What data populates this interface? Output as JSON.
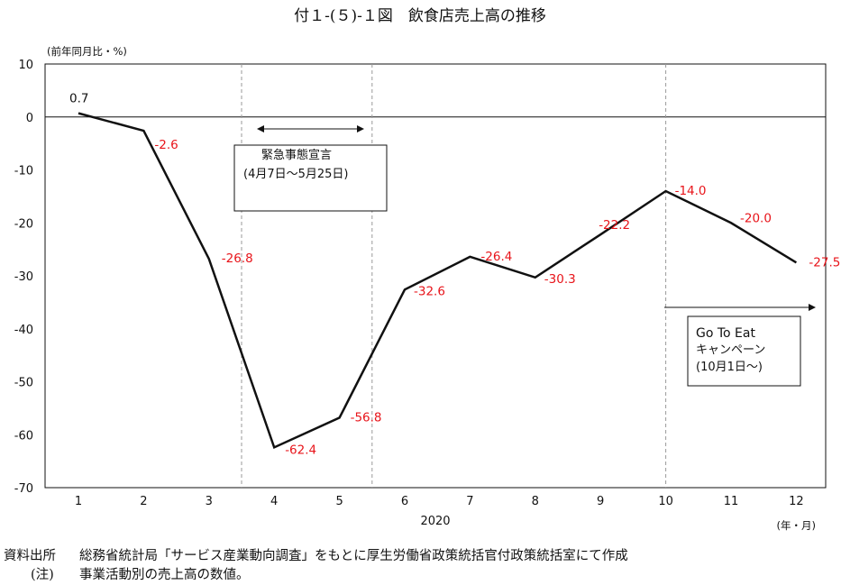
{
  "chart_data": {
    "type": "line",
    "title": "付１-(５)-１図　飲食店売上高の推移",
    "ylabel": "(前年同月比・%)",
    "xlabel": "(年・月)",
    "year_label": "2020",
    "categories": [
      "1",
      "2",
      "3",
      "4",
      "5",
      "6",
      "7",
      "8",
      "9",
      "10",
      "11",
      "12"
    ],
    "values": [
      0.7,
      -2.6,
      -26.8,
      -62.4,
      -56.8,
      -32.6,
      -26.4,
      -30.3,
      -22.2,
      -14.0,
      -20.0,
      -27.5
    ],
    "data_labels": [
      "0.7",
      "-2.6",
      "-26.8",
      "-62.4",
      "-56.8",
      "-32.6",
      "-26.4",
      "-30.3",
      "-22.2",
      "-14.0",
      "-20.0",
      "-27.5"
    ],
    "ylim": [
      -70,
      10
    ],
    "yticks": [
      "10",
      "0",
      "-10",
      "-20",
      "-30",
      "-40",
      "-50",
      "-60",
      "-70"
    ],
    "grid": false,
    "label_colors": {
      "first": "#111111",
      "others": "#e8141a"
    },
    "line_color": "#111111",
    "dashed_verticals_at_x": [
      3.5,
      5.5,
      10
    ],
    "annotations": {
      "emergency": {
        "line1": "緊急事態宣言",
        "line2": "(4月7日～5月25日)"
      },
      "gotoeat": {
        "line1": "Go To Eat",
        "line2": "キャンペーン",
        "line3": "(10月1日～)"
      }
    }
  },
  "footer": {
    "source_label": "資料出所",
    "source_text": "総務省統計局「サービス産業動向調査」をもとに厚生労働省政策統括官付政策統括室にて作成",
    "note_label": "(注)",
    "note_text": "事業活動別の売上高の数値。"
  }
}
